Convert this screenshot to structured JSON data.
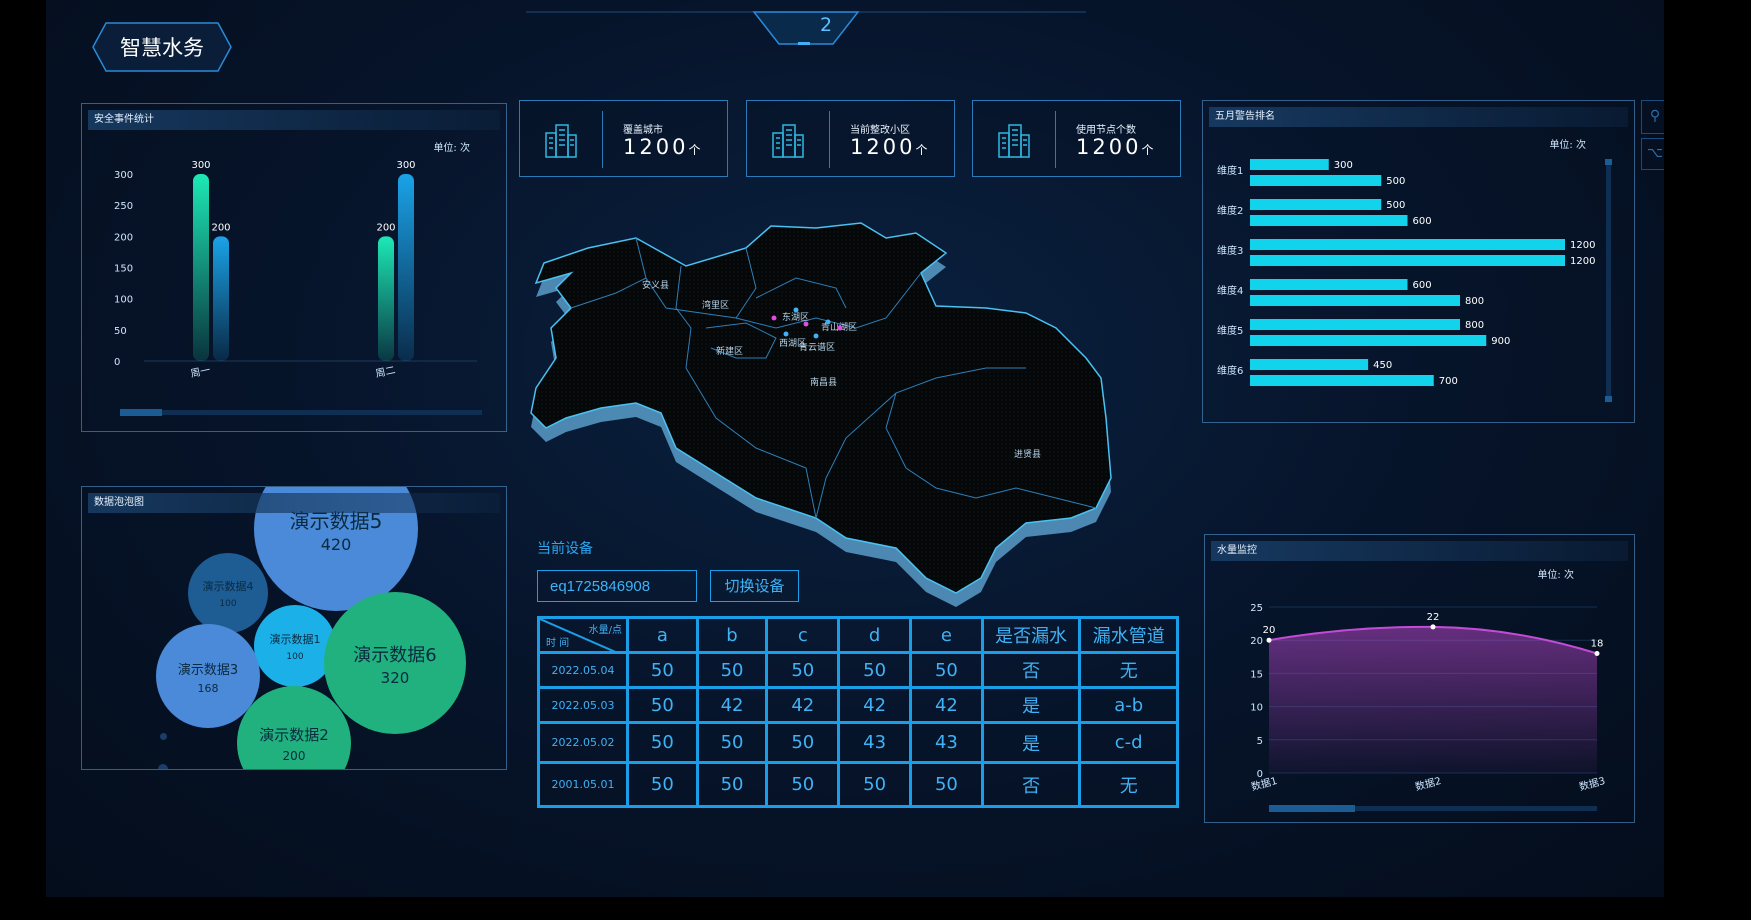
{
  "header": {
    "title": "智慧水务",
    "page_num": "2"
  },
  "security_panel": {
    "title": "安全事件统计",
    "unit": "单位: 次",
    "chart_data": {
      "type": "bar",
      "categories": [
        "周一",
        "周二"
      ],
      "series": [
        {
          "values": [
            300,
            200
          ]
        },
        {
          "values": [
            200,
            300
          ]
        }
      ],
      "ylim": [
        0,
        300
      ],
      "yticks": [
        "0",
        "50",
        "100",
        "150",
        "200",
        "250",
        "300"
      ]
    },
    "colors": {
      "a": "#1de9b6",
      "b": "#1aa3e8"
    }
  },
  "bubble_panel": {
    "title": "数据泡泡图",
    "chart_data": {
      "type": "bubble",
      "items": [
        {
          "name": "演示数据5",
          "value": "420",
          "color": "#4a8ad8"
        },
        {
          "name": "演示数据4",
          "value": "100",
          "color": "#1e5c94"
        },
        {
          "name": "演示数据1",
          "value": "100",
          "color": "#1cb0e8"
        },
        {
          "name": "演示数据6",
          "value": "320",
          "color": "#21b17e"
        },
        {
          "name": "演示数据3",
          "value": "168",
          "color": "#4a8ad8"
        },
        {
          "name": "演示数据2",
          "value": "200",
          "color": "#21b17e"
        }
      ]
    }
  },
  "stats": [
    {
      "label": "覆盖城市",
      "value": "1200",
      "unit": "个"
    },
    {
      "label": "当前整改小区",
      "value": "1200",
      "unit": "个"
    },
    {
      "label": "使用节点个数",
      "value": "1200",
      "unit": "个"
    }
  ],
  "map": {
    "labels": [
      "安义县",
      "湾里区",
      "新建区",
      "东湖区",
      "西湖区",
      "青山湖区",
      "青云谱区",
      "南昌县",
      "进贤县"
    ]
  },
  "device": {
    "label": "当前设备",
    "input_value": "eq1725846908",
    "switch_label": "切换设备"
  },
  "table": {
    "corner_top": "水量/点",
    "corner_bottom": "时 间",
    "headers": [
      "a",
      "b",
      "c",
      "d",
      "e",
      "是否漏水",
      "漏水管道"
    ],
    "rows": [
      {
        "date": "2022.05.04",
        "cells": [
          "50",
          "50",
          "50",
          "50",
          "50",
          "否",
          "无"
        ]
      },
      {
        "date": "2022.05.03",
        "cells": [
          "50",
          "42",
          "42",
          "42",
          "42",
          "是",
          "a-b"
        ]
      },
      {
        "date": "2022.05.02",
        "cells": [
          "50",
          "50",
          "50",
          "43",
          "43",
          "是",
          "c-d"
        ]
      },
      {
        "date": "2001.05.01",
        "cells": [
          "50",
          "50",
          "50",
          "50",
          "50",
          "否",
          "无"
        ]
      }
    ]
  },
  "ranking_panel": {
    "title": "五月警告排名",
    "unit": "单位: 次",
    "chart_data": {
      "type": "bar",
      "orientation": "horizontal",
      "categories": [
        "维度1",
        "维度2",
        "维度3",
        "维度4",
        "维度5",
        "维度6"
      ],
      "series": [
        {
          "values": [
            300,
            500,
            1200,
            600,
            800,
            450
          ]
        },
        {
          "values": [
            500,
            600,
            1200,
            800,
            900,
            700
          ]
        }
      ],
      "xlim": [
        0,
        1200
      ]
    },
    "color": "#11d3ec"
  },
  "water_panel": {
    "title": "水量监控",
    "unit": "单位: 次",
    "chart_data": {
      "type": "area",
      "categories": [
        "数据1",
        "数据2",
        "数据3"
      ],
      "values": [
        20,
        22,
        18
      ],
      "ylim": [
        0,
        25
      ],
      "yticks": [
        "0",
        "5",
        "10",
        "15",
        "20",
        "25"
      ]
    },
    "color": "#c44bd6"
  }
}
